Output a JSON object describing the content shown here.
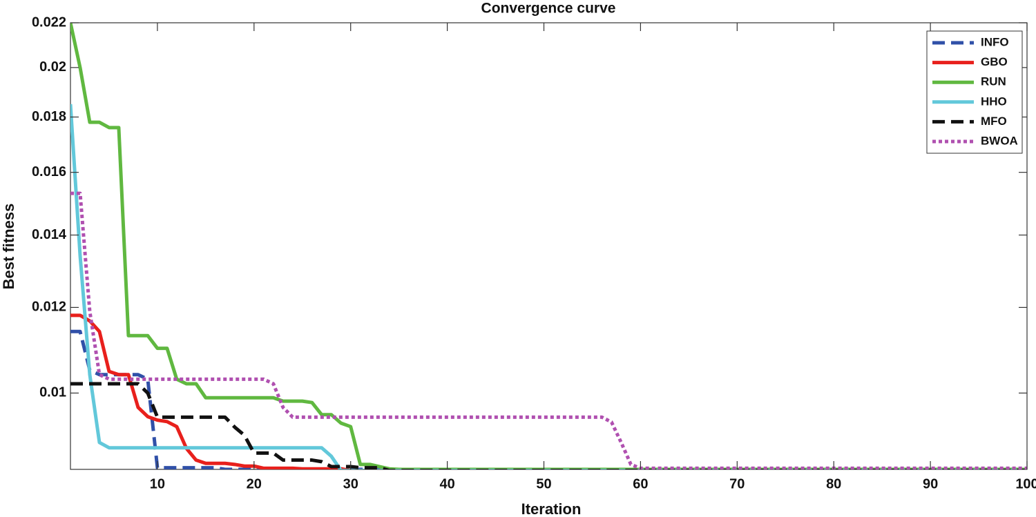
{
  "chart_data": {
    "type": "line",
    "title": "Convergence curve",
    "x_label": "Iteration",
    "y_label": "Best fitness",
    "y_scale": "log",
    "grid": false,
    "legend": "northeast",
    "xlim": [
      1,
      100
    ],
    "ylim": [
      0.0085,
      0.022
    ],
    "xticks": [
      10,
      20,
      30,
      40,
      50,
      60,
      70,
      80,
      90,
      100
    ],
    "yticks": [
      0.01,
      0.012,
      0.014,
      0.016,
      0.018,
      0.02,
      0.022
    ],
    "x": [
      1,
      2,
      3,
      4,
      5,
      6,
      7,
      8,
      9,
      10,
      11,
      12,
      13,
      14,
      15,
      16,
      17,
      18,
      19,
      20,
      21,
      22,
      23,
      24,
      25,
      26,
      27,
      28,
      29,
      30,
      31,
      32,
      33,
      34,
      35,
      40,
      45,
      50,
      55,
      56,
      57,
      58,
      59,
      60,
      65,
      70,
      75,
      80,
      85,
      90,
      95,
      100
    ],
    "series": [
      {
        "name": "INFO",
        "color": "#3050a8",
        "style": "dashed",
        "values": [
          0.0114,
          0.0114,
          0.0105,
          0.0104,
          0.0104,
          0.0104,
          0.0104,
          0.0104,
          0.0103,
          0.00853,
          0.00853,
          0.00853,
          0.00853,
          0.00853,
          0.00853,
          0.00853,
          0.0085,
          0.0085,
          0.0085,
          0.0085,
          0.0085,
          0.0085,
          0.0085,
          0.0085,
          0.0085,
          0.0085,
          0.0085,
          0.0085,
          0.0085,
          0.0085,
          0.0085,
          0.0085,
          0.0085,
          0.0085,
          0.0085,
          0.0085,
          0.0085,
          0.0085,
          0.0085,
          0.0085,
          0.0085,
          0.0085,
          0.0085,
          0.0085,
          0.0085,
          0.0085,
          0.0085,
          0.0085,
          0.0085,
          0.0085,
          0.0085,
          0.0085
        ]
      },
      {
        "name": "GBO",
        "color": "#e8201c",
        "style": "solid",
        "values": [
          0.0118,
          0.0118,
          0.01166,
          0.0114,
          0.01047,
          0.0104,
          0.0104,
          0.0097,
          0.00951,
          0.00944,
          0.00941,
          0.00931,
          0.00889,
          0.00867,
          0.00861,
          0.00861,
          0.00861,
          0.00859,
          0.00856,
          0.00856,
          0.00852,
          0.00852,
          0.00852,
          0.00852,
          0.00851,
          0.00851,
          0.00851,
          0.00851,
          0.00851,
          0.00848,
          0.00848,
          0.00848,
          0.00848,
          0.00848,
          0.00848,
          0.00848,
          0.00848,
          0.00848,
          0.00848,
          0.00848,
          0.00848,
          0.00848,
          0.00848,
          0.00848,
          0.00848,
          0.00848,
          0.00848,
          0.00848,
          0.00848,
          0.00848,
          0.00848,
          0.00848
        ]
      },
      {
        "name": "RUN",
        "color": "#60b840",
        "style": "solid",
        "values": [
          0.022,
          0.02,
          0.0178,
          0.0178,
          0.0176,
          0.0176,
          0.0113,
          0.0113,
          0.0113,
          0.011,
          0.011,
          0.0103,
          0.0102,
          0.0102,
          0.0099,
          0.0099,
          0.0099,
          0.0099,
          0.0099,
          0.0099,
          0.0099,
          0.0099,
          0.00983,
          0.00983,
          0.00983,
          0.0098,
          0.00955,
          0.00955,
          0.00938,
          0.00931,
          0.00859,
          0.00859,
          0.00855,
          0.00851,
          0.0085,
          0.0085,
          0.0085,
          0.0085,
          0.0085,
          0.0085,
          0.0085,
          0.0085,
          0.0085,
          0.0085,
          0.0085,
          0.0085,
          0.0085,
          0.0085,
          0.0085,
          0.0085,
          0.0085,
          0.0085
        ]
      },
      {
        "name": "HHO",
        "color": "#62c8da",
        "style": "solid",
        "values": [
          0.0185,
          0.0134,
          0.0104,
          0.009,
          0.0089,
          0.0089,
          0.0089,
          0.0089,
          0.0089,
          0.0089,
          0.0089,
          0.0089,
          0.0089,
          0.0089,
          0.0089,
          0.0089,
          0.0089,
          0.0089,
          0.0089,
          0.0089,
          0.0089,
          0.0089,
          0.0089,
          0.0089,
          0.0089,
          0.0089,
          0.0089,
          0.00874,
          0.00848,
          0.00848,
          0.00848,
          0.00848,
          0.00848,
          0.00848,
          0.00848,
          0.00848,
          0.00848,
          0.00848,
          0.00848,
          0.00848,
          0.00848,
          0.00848,
          0.00848,
          0.00848,
          0.00848,
          0.00848,
          0.00848,
          0.00848,
          0.00848,
          0.00848,
          0.00848,
          0.00848
        ]
      },
      {
        "name": "MFO",
        "color": "#111111",
        "style": "dashed",
        "values": [
          0.0102,
          0.0102,
          0.0102,
          0.0102,
          0.0102,
          0.0102,
          0.0102,
          0.0102,
          0.01,
          0.0095,
          0.0095,
          0.0095,
          0.0095,
          0.0095,
          0.0095,
          0.0095,
          0.0095,
          0.0093,
          0.00914,
          0.0088,
          0.0088,
          0.0088,
          0.00867,
          0.00867,
          0.00867,
          0.00867,
          0.00864,
          0.00855,
          0.00855,
          0.00855,
          0.00853,
          0.00853,
          0.00853,
          0.00848,
          0.00848,
          0.00848,
          0.00848,
          0.00848,
          0.00848,
          0.00848,
          0.00848,
          0.00848,
          0.00848,
          0.00848,
          0.00848,
          0.00848,
          0.00848,
          0.00848,
          0.00848,
          0.00848,
          0.00848,
          0.00848
        ]
      },
      {
        "name": "BWOA",
        "color": "#b050b0",
        "style": "dotted",
        "values": [
          0.0153,
          0.0153,
          0.0119,
          0.0104,
          0.0103,
          0.0103,
          0.0103,
          0.0103,
          0.0103,
          0.0103,
          0.0103,
          0.0103,
          0.0103,
          0.0103,
          0.0103,
          0.0103,
          0.0103,
          0.0103,
          0.0103,
          0.0103,
          0.0103,
          0.0102,
          0.0097,
          0.0095,
          0.0095,
          0.0095,
          0.0095,
          0.0095,
          0.0095,
          0.0095,
          0.0095,
          0.0095,
          0.0095,
          0.0095,
          0.0095,
          0.0095,
          0.0095,
          0.0095,
          0.0095,
          0.0095,
          0.0094,
          0.009,
          0.00859,
          0.00852,
          0.00852,
          0.00852,
          0.00852,
          0.00852,
          0.00852,
          0.00852,
          0.00852,
          0.00852
        ]
      }
    ]
  }
}
